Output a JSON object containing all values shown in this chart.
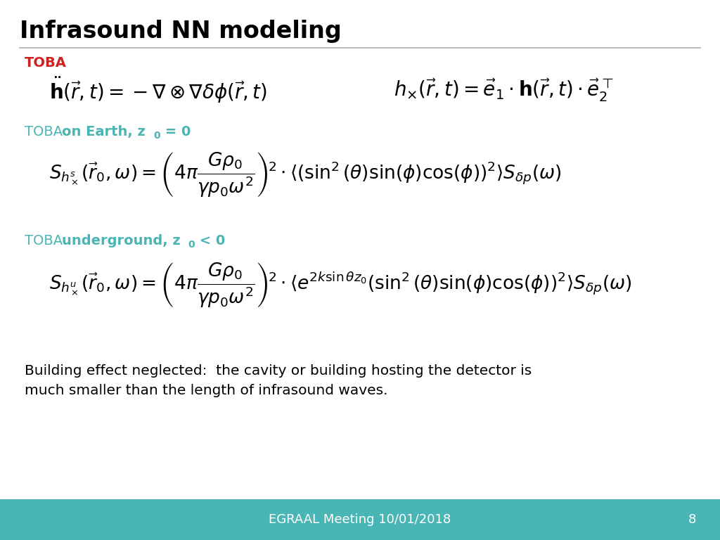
{
  "title": "Infrasound NN modeling",
  "title_color": "#000000",
  "title_fontsize": 24,
  "bg_color": "#ffffff",
  "footer_bg_color": "#4ab5b5",
  "footer_text": "EGRAAL Meeting 10/01/2018",
  "footer_page": "8",
  "footer_text_color": "#ffffff",
  "toba_color": "#cc2222",
  "teal_color": "#4ab5b5",
  "separator_color": "#aaaaaa",
  "note_text": "Building effect neglected:  the cavity or building hosting the detector is\nmuch smaller than the length of infrasound waves."
}
